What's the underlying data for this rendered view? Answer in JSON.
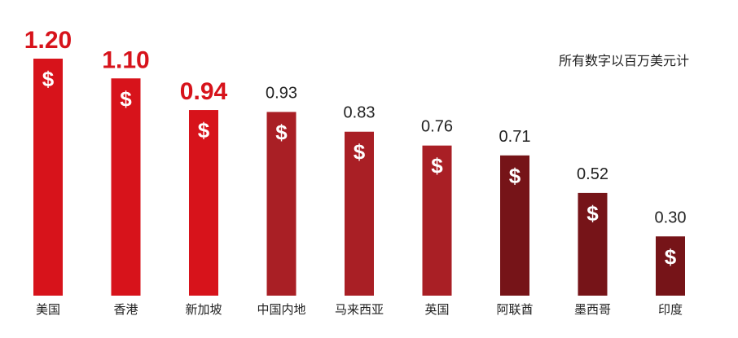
{
  "note": "所有数字以百万美元计",
  "currency_symbol": "$",
  "colors": {
    "red": "#d7131b",
    "mid_red": "#a91f25",
    "dark_red": "#761418",
    "highlight_text": "#d7131b",
    "text": "#222222"
  },
  "chart_data": {
    "type": "bar",
    "title": "",
    "xlabel": "",
    "ylabel": "",
    "unit": "百万美元",
    "ylim": [
      0,
      1.2
    ],
    "grid": false,
    "categories": [
      "美国",
      "香港",
      "新加坡",
      "中国内地",
      "马来西亚",
      "英国",
      "阿联酋",
      "墨西哥",
      "印度"
    ],
    "values": [
      1.2,
      1.1,
      0.94,
      0.93,
      0.83,
      0.76,
      0.71,
      0.52,
      0.3
    ],
    "value_labels": [
      "1.20",
      "1.10",
      "0.94",
      "0.93",
      "0.83",
      "0.76",
      "0.71",
      "0.52",
      "0.30"
    ],
    "highlighted_top": 3,
    "bar_color_groups": [
      "red",
      "red",
      "red",
      "mid_red",
      "mid_red",
      "mid_red",
      "dark_red",
      "dark_red",
      "dark_red"
    ]
  }
}
